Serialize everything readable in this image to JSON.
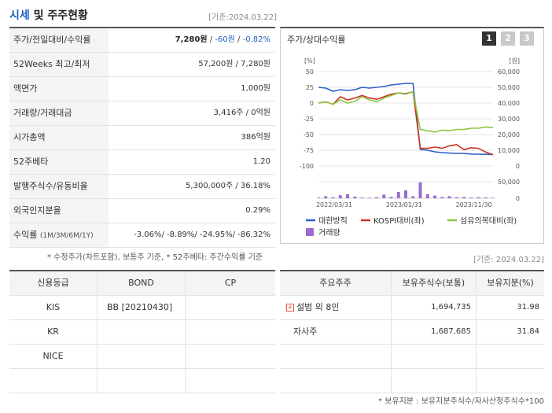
{
  "header": {
    "title_hl": "시세",
    "title_rest": "및 주주현황",
    "base_date": "[기준:2024.03.22]"
  },
  "price_rows": {
    "price": {
      "label": "주가/전일대비/수익률",
      "price": "7,280원",
      "change": "-60원",
      "rate": "-0.82%"
    },
    "w52": {
      "label": "52Weeks 최고/최저",
      "value": "57,200원 / 7,280원"
    },
    "par": {
      "label": "액면가",
      "value": "1,000원"
    },
    "volume": {
      "label": "거래량/거래대금",
      "value": "3,416주 / 0억원"
    },
    "mcap": {
      "label": "시가총액",
      "value": "386억원"
    },
    "beta": {
      "label": "52주베타",
      "value": "1.20"
    },
    "shares": {
      "label": "발행주식수/유동비율",
      "value": "5,300,000주 / 36.18%"
    },
    "foreign": {
      "label": "외국인지분율",
      "value": "0.29%"
    },
    "returns": {
      "label": "수익률",
      "label_small": "(1M/3M/6M/1Y)",
      "value": "-3.06%/ -8.89%/ -24.95%/ -86.32%"
    }
  },
  "note_left": "* 수정주가(차트포함), 보통주 기준, * 52주베타: 주간수익률 기준",
  "chart_panel": {
    "title": "주가/상대수익률",
    "pages": [
      "1",
      "2",
      "3"
    ],
    "colors": {
      "active_page": "#333333",
      "inactive_page": "#c8c8c8"
    }
  },
  "chart_data": {
    "type": "line",
    "left_unit": "[%]",
    "right_unit": "[원]",
    "left_ticks": [
      "50",
      "25",
      "0",
      "-25",
      "-50",
      "-75",
      "-100"
    ],
    "left_range": [
      -100,
      50
    ],
    "right_ticks": [
      "60,000",
      "50,000",
      "40,000",
      "30,000",
      "20,000",
      "10,000",
      "0"
    ],
    "right_range": [
      0,
      60000
    ],
    "volume_ticks": [
      "50,000",
      "0"
    ],
    "volume_range": [
      0,
      50000
    ],
    "x_ticks": [
      "2022/03/31",
      "2023/01/31",
      "2023/11/30"
    ],
    "x_tick_positions": [
      0,
      0.4,
      0.8
    ],
    "series": [
      {
        "name": "대한방직",
        "axis": "right",
        "color": "#2a5fc9",
        "values": [
          50000,
          49500,
          47500,
          48500,
          48000,
          48500,
          50000,
          49500,
          50000,
          50500,
          51500,
          52000,
          52500,
          52500,
          10500,
          10000,
          9000,
          8500,
          8200,
          8000,
          8000,
          7600,
          7500,
          7400,
          7300
        ]
      },
      {
        "name": "KOSPI대비(좌)",
        "axis": "left",
        "color": "#cc3322",
        "values": [
          0,
          2,
          -2,
          10,
          5,
          8,
          12,
          8,
          6,
          10,
          14,
          16,
          15,
          18,
          -72,
          -72,
          -70,
          -72,
          -68,
          -66,
          -74,
          -71,
          -72,
          -78,
          -82
        ]
      },
      {
        "name": "섬유의복대비(좌)",
        "axis": "left",
        "color": "#8cc63f",
        "values": [
          0,
          2,
          -2,
          5,
          0,
          3,
          10,
          5,
          2,
          8,
          12,
          16,
          14,
          18,
          -42,
          -44,
          -46,
          -43,
          -44,
          -42,
          -42,
          -40,
          -40,
          -38,
          -39
        ]
      }
    ],
    "volume": {
      "name": "거래량",
      "color": "#9b6ccf",
      "values": [
        2000,
        6000,
        3000,
        9000,
        12000,
        5000,
        2000,
        1500,
        3000,
        11000,
        4000,
        19000,
        24000,
        6000,
        48000,
        12000,
        8000,
        4000,
        6000,
        3000,
        4000,
        2000,
        3000,
        2500,
        1500
      ]
    }
  },
  "base_date_bottom": "[기준: 2024.03.22]",
  "credit": {
    "headers": [
      "신용등급",
      "BOND",
      "CP"
    ],
    "rows": [
      {
        "agency": "KIS",
        "bond": "BB   [20210430]",
        "cp": ""
      },
      {
        "agency": "KR",
        "bond": "",
        "cp": ""
      },
      {
        "agency": "NICE",
        "bond": "",
        "cp": ""
      },
      {
        "agency": "",
        "bond": "",
        "cp": ""
      }
    ]
  },
  "holders": {
    "headers": [
      "주요주주",
      "보유주식수(보통)",
      "보유지분(%)"
    ],
    "rows": [
      {
        "name": "설범 외 8인",
        "shares": "1,694,735",
        "pct": "31.98"
      },
      {
        "name": "자사주",
        "shares": "1,687,685",
        "pct": "31.84"
      },
      {
        "name": "",
        "shares": "",
        "pct": ""
      },
      {
        "name": "",
        "shares": "",
        "pct": ""
      }
    ]
  },
  "note_right": "* 보유지분 : 보유지분주식수/자사산정주식수*100"
}
